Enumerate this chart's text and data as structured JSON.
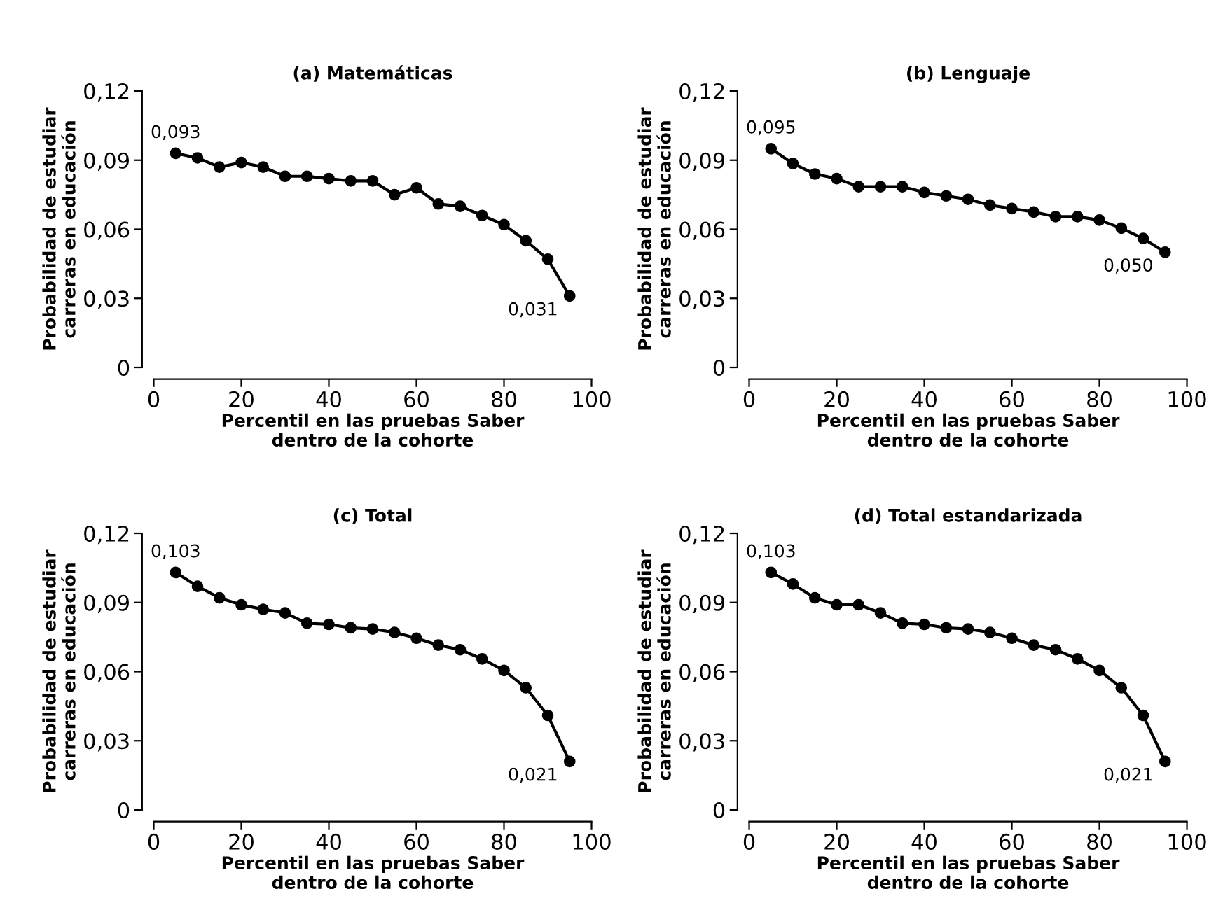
{
  "chart_data": [
    {
      "type": "line",
      "title": "(a) Matemáticas",
      "xlabel": "Percentil en las pruebas Saber\ndentro de la cohorte",
      "ylabel": "Probabilidad de estudiar\ncarreras en educación",
      "x": [
        5,
        10,
        15,
        20,
        25,
        30,
        35,
        40,
        45,
        50,
        55,
        60,
        65,
        70,
        75,
        80,
        85,
        90,
        95
      ],
      "series": [
        {
          "color": "#000000",
          "values": [
            0.093,
            0.091,
            0.087,
            0.089,
            0.087,
            0.083,
            0.083,
            0.082,
            0.081,
            0.081,
            0.075,
            0.078,
            0.071,
            0.07,
            0.066,
            0.062,
            0.055,
            0.047,
            0.031
          ],
          "value_labels": [
            "0,093",
            null,
            null,
            null,
            null,
            null,
            null,
            null,
            null,
            null,
            null,
            null,
            null,
            null,
            null,
            null,
            null,
            null,
            "0,031"
          ]
        }
      ],
      "marker": "circle",
      "line_style": "solid",
      "xlim": [
        0,
        100
      ],
      "ylim": [
        0,
        0.12
      ],
      "xticks": [
        0,
        20,
        40,
        60,
        80,
        100
      ],
      "yticks": [
        0,
        {
          "value": 0.03,
          "label": "0,03"
        },
        {
          "value": 0.06,
          "label": "0,06"
        },
        {
          "value": 0.09,
          "label": "0,09"
        },
        {
          "value": 0.12,
          "label": "0,12"
        }
      ]
    },
    {
      "type": "line",
      "title": "(b) Lenguaje",
      "xlabel": "Percentil en las pruebas Saber\ndentro de la cohorte",
      "ylabel": "Probabilidad de estudiar\ncarreras en educación",
      "x": [
        5,
        10,
        15,
        20,
        25,
        30,
        35,
        40,
        45,
        50,
        55,
        60,
        65,
        70,
        75,
        80,
        85,
        90,
        95
      ],
      "series": [
        {
          "color": "#000000",
          "values": [
            0.095,
            0.0885,
            0.084,
            0.082,
            0.0785,
            0.0785,
            0.0785,
            0.076,
            0.0745,
            0.073,
            0.0705,
            0.069,
            0.0675,
            0.0655,
            0.0655,
            0.064,
            0.0605,
            0.056,
            0.05
          ],
          "value_labels": [
            "0,095",
            null,
            null,
            null,
            null,
            null,
            null,
            null,
            null,
            null,
            null,
            null,
            null,
            null,
            null,
            null,
            null,
            null,
            "0,050"
          ]
        }
      ],
      "marker": "circle",
      "line_style": "solid",
      "xlim": [
        0,
        100
      ],
      "ylim": [
        0,
        0.12
      ],
      "xticks": [
        0,
        20,
        40,
        60,
        80,
        100
      ],
      "yticks": [
        0,
        {
          "value": 0.03,
          "label": "0,03"
        },
        {
          "value": 0.06,
          "label": "0,06"
        },
        {
          "value": 0.09,
          "label": "0,09"
        },
        {
          "value": 0.12,
          "label": "0,12"
        }
      ]
    },
    {
      "type": "line",
      "title": "(c) Total",
      "xlabel": "Percentil en las pruebas Saber\ndentro de la cohorte",
      "ylabel": "Probabilidad de estudiar\ncarreras en educación",
      "x": [
        5,
        10,
        15,
        20,
        25,
        30,
        35,
        40,
        45,
        50,
        55,
        60,
        65,
        70,
        75,
        80,
        85,
        90,
        95
      ],
      "series": [
        {
          "color": "#000000",
          "values": [
            0.103,
            0.097,
            0.092,
            0.089,
            0.087,
            0.0855,
            0.081,
            0.0805,
            0.079,
            0.0785,
            0.077,
            0.0745,
            0.0715,
            0.0695,
            0.0655,
            0.0605,
            0.053,
            0.041,
            0.021
          ],
          "value_labels": [
            "0,103",
            null,
            null,
            null,
            null,
            null,
            null,
            null,
            null,
            null,
            null,
            null,
            null,
            null,
            null,
            null,
            null,
            null,
            "0,021"
          ]
        }
      ],
      "marker": "circle",
      "line_style": "solid",
      "xlim": [
        0,
        100
      ],
      "ylim": [
        0,
        0.12
      ],
      "xticks": [
        0,
        20,
        40,
        60,
        80,
        100
      ],
      "yticks": [
        0,
        {
          "value": 0.03,
          "label": "0,03"
        },
        {
          "value": 0.06,
          "label": "0,06"
        },
        {
          "value": 0.09,
          "label": "0,09"
        },
        {
          "value": 0.12,
          "label": "0,12"
        }
      ]
    },
    {
      "type": "line",
      "title": "(d) Total estandarizada",
      "xlabel": "Percentil en las pruebas Saber\ndentro de la cohorte",
      "ylabel": "Probabilidad de estudiar\ncarreras en educación",
      "x": [
        5,
        10,
        15,
        20,
        25,
        30,
        35,
        40,
        45,
        50,
        55,
        60,
        65,
        70,
        75,
        80,
        85,
        90,
        95
      ],
      "series": [
        {
          "color": "#000000",
          "values": [
            0.103,
            0.098,
            0.092,
            0.089,
            0.089,
            0.0855,
            0.081,
            0.0805,
            0.079,
            0.0785,
            0.077,
            0.0745,
            0.0715,
            0.0695,
            0.0655,
            0.0605,
            0.053,
            0.041,
            0.021
          ],
          "value_labels": [
            "0,103",
            null,
            null,
            null,
            null,
            null,
            null,
            null,
            null,
            null,
            null,
            null,
            null,
            null,
            null,
            null,
            null,
            null,
            "0,021"
          ]
        }
      ],
      "marker": "circle",
      "line_style": "solid",
      "xlim": [
        0,
        100
      ],
      "ylim": [
        0,
        0.12
      ],
      "xticks": [
        0,
        20,
        40,
        60,
        80,
        100
      ],
      "yticks": [
        0,
        {
          "value": 0.03,
          "label": "0,03"
        },
        {
          "value": 0.06,
          "label": "0,06"
        },
        {
          "value": 0.09,
          "label": "0,09"
        },
        {
          "value": 0.12,
          "label": "0,12"
        }
      ]
    }
  ]
}
